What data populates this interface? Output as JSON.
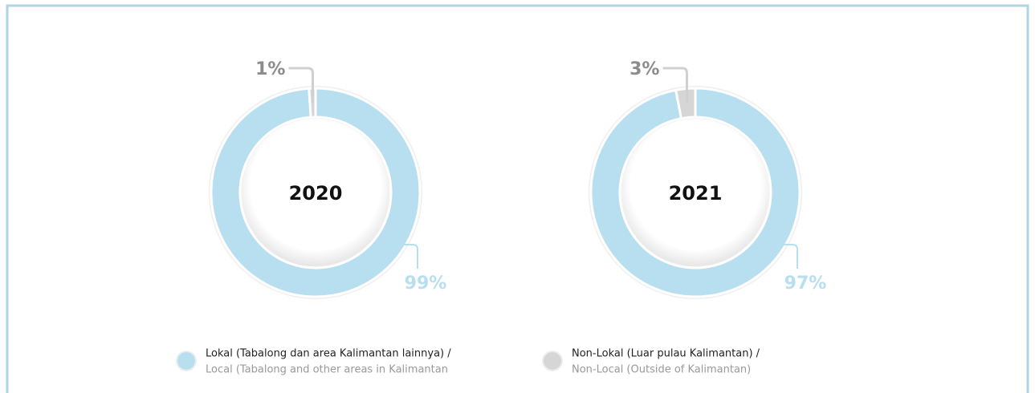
{
  "chart_data": [
    {
      "type": "pie",
      "title": "2020",
      "values": [
        99,
        1
      ],
      "value_labels": [
        "99%",
        "1%"
      ],
      "colors": [
        "#b8dff0",
        "#d6d6d6"
      ]
    },
    {
      "type": "pie",
      "title": "2021",
      "values": [
        97,
        3
      ],
      "value_labels": [
        "97%",
        "3%"
      ],
      "colors": [
        "#b8dff0",
        "#d6d6d6"
      ]
    }
  ],
  "legend": {
    "items": [
      {
        "label": "Lokal (Tabalong dan area Kalimantan lainnya) /",
        "translation": "Local (Tabalong and other areas in Kalimantan",
        "color": "#b8dff0"
      },
      {
        "label": "Non-Lokal (Luar pulau Kalimantan) /",
        "translation": "Non-Local (Outside of Kalimantan)",
        "color": "#d6d6d6"
      }
    ]
  }
}
